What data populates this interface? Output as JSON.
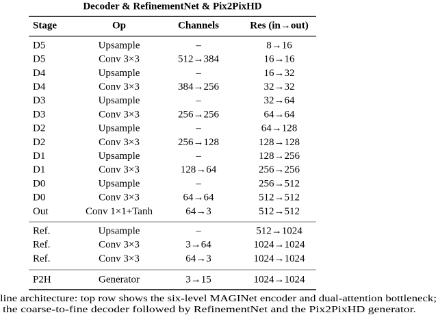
{
  "table": {
    "title": "Decoder & RefinementNet & Pix2PixHD",
    "header": [
      "Stage",
      "Op",
      "Channels",
      "Res (in→out)"
    ],
    "sections": [
      [
        [
          "D5",
          "Upsample",
          "–",
          "8→16"
        ],
        [
          "D5",
          "Conv 3×3",
          "512→384",
          "16→16"
        ],
        [
          "D4",
          "Upsample",
          "–",
          "16→32"
        ],
        [
          "D4",
          "Conv 3×3",
          "384→256",
          "32→32"
        ],
        [
          "D3",
          "Upsample",
          "–",
          "32→64"
        ],
        [
          "D3",
          "Conv 3×3",
          "256→256",
          "64→64"
        ],
        [
          "D2",
          "Upsample",
          "–",
          "64→128"
        ],
        [
          "D2",
          "Conv 3×3",
          "256→128",
          "128→128"
        ],
        [
          "D1",
          "Upsample",
          "–",
          "128→256"
        ],
        [
          "D1",
          "Conv 3×3",
          "128→64",
          "256→256"
        ],
        [
          "D0",
          "Upsample",
          "–",
          "256→512"
        ],
        [
          "D0",
          "Conv 3×3",
          "64→64",
          "512→512"
        ],
        [
          "Out",
          "Conv 1×1+Tanh",
          "64→3",
          "512→512"
        ]
      ],
      [
        [
          "Ref.",
          "Upsample",
          "–",
          "512→1024"
        ],
        [
          "Ref.",
          "Conv 3×3",
          "3→64",
          "1024→1024"
        ],
        [
          "Ref.",
          "Conv 3×3",
          "64→3",
          "1024→1024"
        ]
      ],
      [
        [
          "P2H",
          "Generator",
          "3→15",
          "1024→1024"
        ]
      ]
    ]
  },
  "caption": [
    "line architecture: top row shows the six-level MAGINet encoder and dual-attention bottleneck;",
    "the coarse-to-fine decoder followed by RefinementNet and the Pix2PixHD generator."
  ]
}
